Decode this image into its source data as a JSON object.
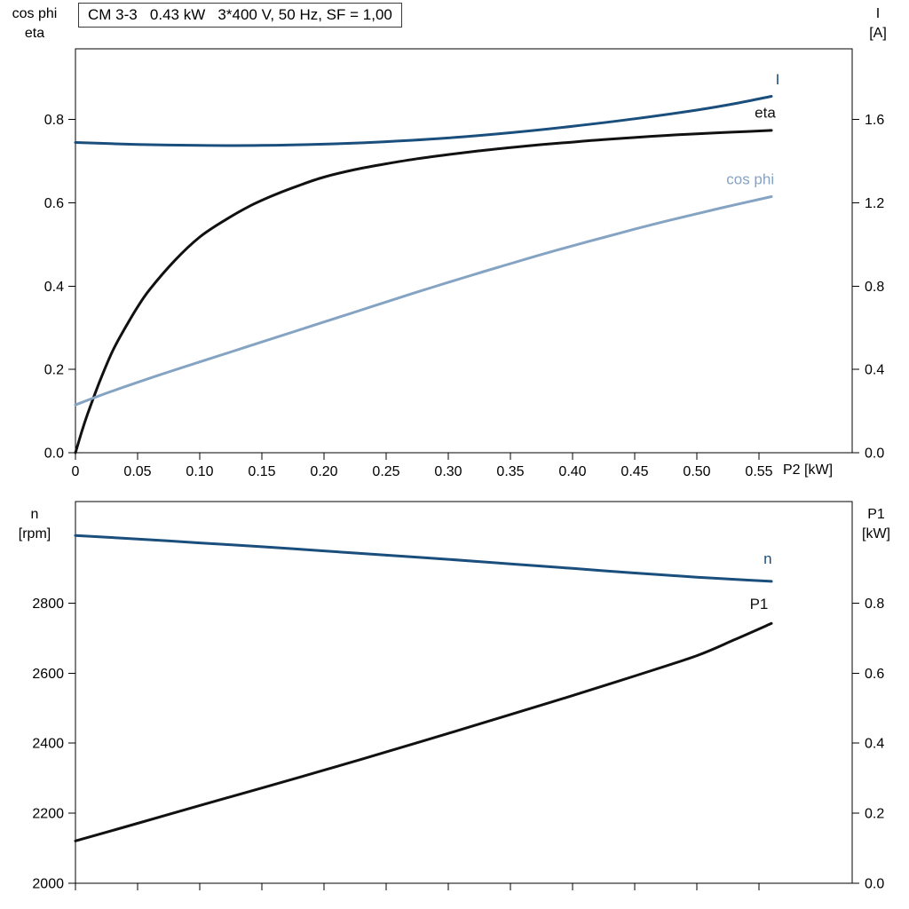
{
  "title_box": "CM 3-3   0.43 kW   3*400 V, 50 Hz, SF = 1,00",
  "colors": {
    "dark_blue": "#1a4e7c",
    "light_blue": "#85a3c2",
    "black": "#111111",
    "frame": "#000000"
  },
  "chart_data": [
    {
      "type": "line",
      "xlabel": "P2 [kW]",
      "xlim": [
        0,
        0.625
      ],
      "xticks": [
        0,
        0.05,
        0.1,
        0.15,
        0.2,
        0.25,
        0.3,
        0.35,
        0.4,
        0.45,
        0.5,
        0.55
      ],
      "xtick_labels": [
        "0",
        "0.05",
        "0.10",
        "0.15",
        "0.20",
        "0.25",
        "0.30",
        "0.35",
        "0.40",
        "0.45",
        "0.50",
        "0.55"
      ],
      "show_xtick_labels": true,
      "grid": false,
      "left_axis": {
        "label_lines": [
          "cos phi",
          "eta"
        ],
        "lim": [
          0,
          0.97
        ],
        "ticks": [
          0.0,
          0.2,
          0.4,
          0.6,
          0.8
        ],
        "tick_labels": [
          "0.0",
          "0.2",
          "0.4",
          "0.6",
          "0.8"
        ]
      },
      "right_axis": {
        "label_lines": [
          "I",
          "[A]"
        ],
        "lim": [
          0,
          1.94
        ],
        "ticks": [
          0.0,
          0.4,
          0.8,
          1.2,
          1.6
        ],
        "tick_labels": [
          "0.0",
          "0.4",
          "0.8",
          "1.2",
          "1.6"
        ]
      },
      "series": [
        {
          "name": "I",
          "axis": "right",
          "color_key": "dark_blue",
          "label": {
            "text": "I",
            "x": 0.565,
            "y": 1.77
          },
          "points": [
            [
              0,
              1.49
            ],
            [
              0.05,
              1.481
            ],
            [
              0.1,
              1.476
            ],
            [
              0.15,
              1.476
            ],
            [
              0.2,
              1.482
            ],
            [
              0.25,
              1.494
            ],
            [
              0.3,
              1.512
            ],
            [
              0.35,
              1.537
            ],
            [
              0.4,
              1.568
            ],
            [
              0.45,
              1.604
            ],
            [
              0.5,
              1.646
            ],
            [
              0.53,
              1.676
            ],
            [
              0.56,
              1.712
            ]
          ]
        },
        {
          "name": "eta",
          "axis": "left",
          "color_key": "black",
          "label": {
            "text": "eta",
            "x": 0.555,
            "y": 0.805
          },
          "points": [
            [
              0,
              0
            ],
            [
              0.005,
              0.05
            ],
            [
              0.01,
              0.095
            ],
            [
              0.02,
              0.175
            ],
            [
              0.03,
              0.245
            ],
            [
              0.04,
              0.3
            ],
            [
              0.05,
              0.35
            ],
            [
              0.06,
              0.393
            ],
            [
              0.08,
              0.462
            ],
            [
              0.1,
              0.518
            ],
            [
              0.12,
              0.558
            ],
            [
              0.14,
              0.592
            ],
            [
              0.16,
              0.619
            ],
            [
              0.18,
              0.642
            ],
            [
              0.2,
              0.662
            ],
            [
              0.225,
              0.68
            ],
            [
              0.25,
              0.694
            ],
            [
              0.275,
              0.706
            ],
            [
              0.3,
              0.716
            ],
            [
              0.325,
              0.725
            ],
            [
              0.35,
              0.733
            ],
            [
              0.375,
              0.74
            ],
            [
              0.4,
              0.746
            ],
            [
              0.425,
              0.752
            ],
            [
              0.45,
              0.757
            ],
            [
              0.475,
              0.762
            ],
            [
              0.5,
              0.766
            ],
            [
              0.53,
              0.77
            ],
            [
              0.56,
              0.774
            ]
          ]
        },
        {
          "name": "cos phi",
          "axis": "left",
          "color_key": "light_blue",
          "label": {
            "text": "cos phi",
            "x": 0.543,
            "y": 0.645
          },
          "points": [
            [
              0,
              0.115
            ],
            [
              0.025,
              0.143
            ],
            [
              0.05,
              0.169
            ],
            [
              0.075,
              0.194
            ],
            [
              0.1,
              0.218
            ],
            [
              0.125,
              0.242
            ],
            [
              0.15,
              0.266
            ],
            [
              0.175,
              0.29
            ],
            [
              0.2,
              0.314
            ],
            [
              0.225,
              0.338
            ],
            [
              0.25,
              0.362
            ],
            [
              0.275,
              0.386
            ],
            [
              0.3,
              0.409
            ],
            [
              0.325,
              0.432
            ],
            [
              0.35,
              0.454
            ],
            [
              0.375,
              0.476
            ],
            [
              0.4,
              0.497
            ],
            [
              0.425,
              0.517
            ],
            [
              0.45,
              0.537
            ],
            [
              0.475,
              0.556
            ],
            [
              0.5,
              0.574
            ],
            [
              0.53,
              0.595
            ],
            [
              0.56,
              0.615
            ]
          ]
        }
      ]
    },
    {
      "type": "line",
      "xlabel": "",
      "xlim": [
        0,
        0.625
      ],
      "xticks": [
        0,
        0.05,
        0.1,
        0.15,
        0.2,
        0.25,
        0.3,
        0.35,
        0.4,
        0.45,
        0.5,
        0.55
      ],
      "xtick_labels": [
        "",
        "",
        "",
        "",
        "",
        "",
        "",
        "",
        "",
        "",
        "",
        ""
      ],
      "show_xtick_labels": false,
      "grid": false,
      "left_axis": {
        "label_lines": [
          "n",
          "[rpm]"
        ],
        "lim": [
          2000,
          3090
        ],
        "ticks": [
          2000,
          2200,
          2400,
          2600,
          2800
        ],
        "tick_labels": [
          "2000",
          "2200",
          "2400",
          "2600",
          "2800"
        ]
      },
      "right_axis": {
        "label_lines": [
          "P1",
          "[kW]"
        ],
        "lim": [
          0.0,
          1.09
        ],
        "ticks": [
          0.0,
          0.2,
          0.4,
          0.6,
          0.8
        ],
        "tick_labels": [
          "0.0",
          "0.2",
          "0.4",
          "0.6",
          "0.8"
        ]
      },
      "series": [
        {
          "name": "n",
          "axis": "left",
          "color_key": "dark_blue",
          "label": {
            "text": "n",
            "x": 0.557,
            "y": 2912
          },
          "points": [
            [
              0,
              2993
            ],
            [
              0.05,
              2983
            ],
            [
              0.1,
              2972
            ],
            [
              0.15,
              2961
            ],
            [
              0.2,
              2949
            ],
            [
              0.25,
              2937
            ],
            [
              0.3,
              2925
            ],
            [
              0.35,
              2912
            ],
            [
              0.4,
              2899
            ],
            [
              0.45,
              2886
            ],
            [
              0.5,
              2874
            ],
            [
              0.53,
              2868
            ],
            [
              0.56,
              2862
            ]
          ]
        },
        {
          "name": "P1",
          "axis": "right",
          "color_key": "black",
          "label": {
            "text": "P1",
            "x": 0.55,
            "y": 0.783
          },
          "points": [
            [
              0,
              0.121
            ],
            [
              0.05,
              0.171
            ],
            [
              0.1,
              0.222
            ],
            [
              0.15,
              0.272
            ],
            [
              0.2,
              0.323
            ],
            [
              0.25,
              0.375
            ],
            [
              0.3,
              0.428
            ],
            [
              0.35,
              0.482
            ],
            [
              0.4,
              0.536
            ],
            [
              0.45,
              0.592
            ],
            [
              0.5,
              0.65
            ],
            [
              0.53,
              0.695
            ],
            [
              0.56,
              0.742
            ]
          ]
        }
      ]
    }
  ]
}
